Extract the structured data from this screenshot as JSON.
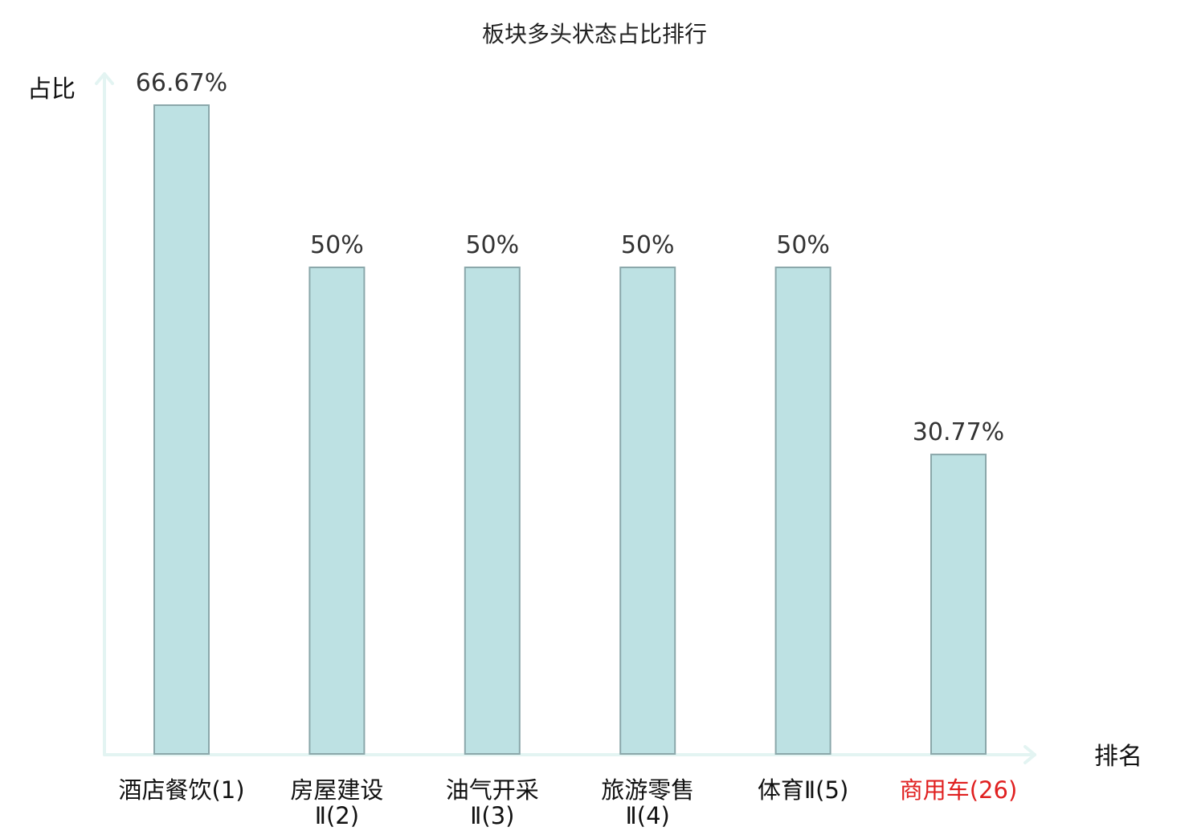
{
  "chart_data": {
    "type": "bar",
    "title": "板块多头状态占比排行",
    "ylabel": "占比",
    "xlabel": "排名",
    "ylim": [
      0,
      66.67
    ],
    "grid": false,
    "legend": "none",
    "categories": [
      [
        "酒店餐饮(1)"
      ],
      [
        "房屋建设",
        "Ⅱ(2)"
      ],
      [
        "油气开采",
        "Ⅱ(3)"
      ],
      [
        "旅游零售",
        "Ⅱ(4)"
      ],
      [
        "体育Ⅱ(5)"
      ],
      [
        "商用车(26)"
      ]
    ],
    "values": [
      66.67,
      50,
      50,
      50,
      50,
      30.77
    ],
    "value_labels": [
      "66.67%",
      "50%",
      "50%",
      "50%",
      "50%",
      "30.77%"
    ],
    "highlight_index": 5,
    "colors": {
      "bar_fill": "#bde1e3",
      "bar_stroke": "#8aa7aa",
      "axis": "#e3f4f2",
      "label": "#333333",
      "highlight": "#e02020"
    }
  }
}
